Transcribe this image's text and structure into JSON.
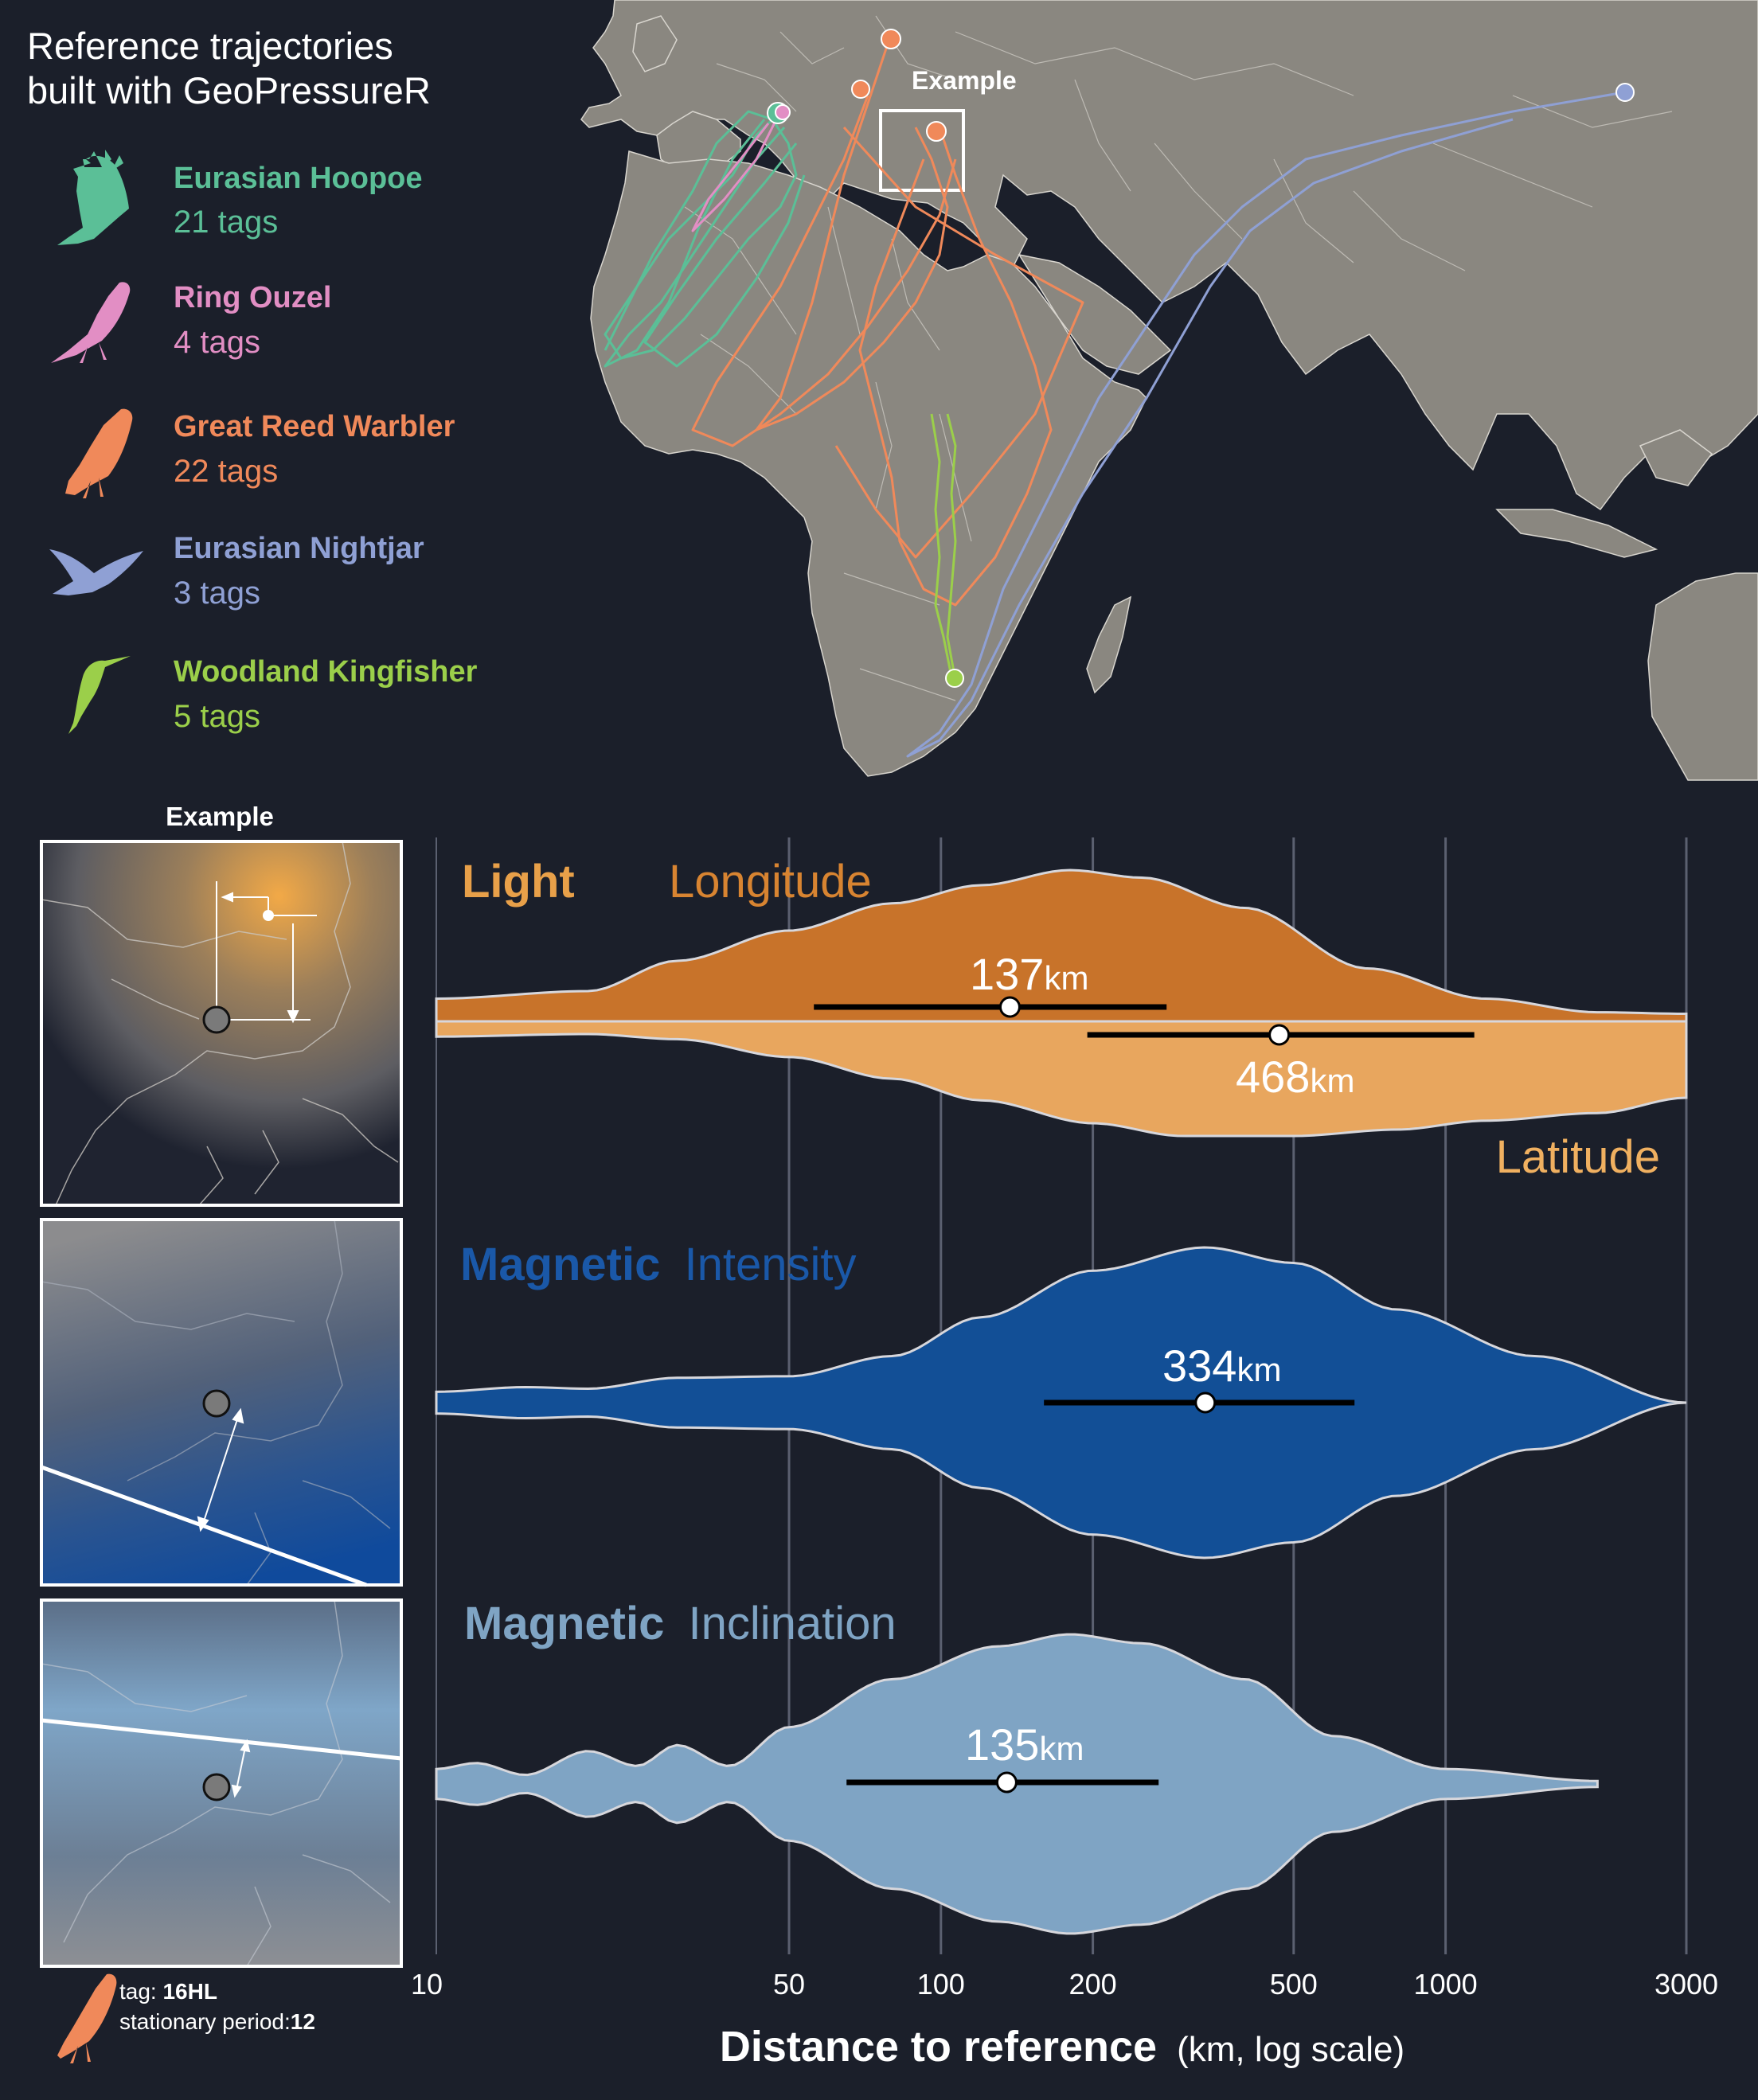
{
  "title_line1": "Reference trajectories",
  "title_line2": "built with GeoPressureR",
  "species": [
    {
      "name": "Eurasian Hoopoe",
      "tags": "21 tags",
      "color": "#5bbf97",
      "icon": "hoopoe-silhouette-icon"
    },
    {
      "name": "Ring Ouzel",
      "tags": "4 tags",
      "color": "#e28ec4",
      "icon": "ring-ouzel-silhouette-icon"
    },
    {
      "name": "Great Reed Warbler",
      "tags": "22 tags",
      "color": "#f0895a",
      "icon": "warbler-silhouette-icon"
    },
    {
      "name": "Eurasian Nightjar",
      "tags": "3 tags",
      "color": "#8fa0d4",
      "icon": "nightjar-silhouette-icon"
    },
    {
      "name": "Woodland Kingfisher",
      "tags": "5 tags",
      "color": "#9bcf4a",
      "icon": "kingfisher-silhouette-icon"
    }
  ],
  "map": {
    "example_label": "Example"
  },
  "example_panel_label": "Example",
  "footer": {
    "tag_label": "tag: ",
    "tag_value": "16HL",
    "period_label": "stationary period:",
    "period_value": "12"
  },
  "colors": {
    "background": "#1b1f2a",
    "land": "#8a8780",
    "light_dark": "#c8732a",
    "light_light": "#e8a65e",
    "intensity": "#124f96",
    "inclination": "#7fa4c4"
  },
  "chart_data": {
    "type": "violin",
    "xlabel_bold": "Distance to reference",
    "xlabel_rest": "(km, log scale)",
    "x_scale": "log",
    "xlim": [
      10,
      3000
    ],
    "x_ticks": [
      10,
      50,
      100,
      200,
      500,
      1000,
      3000
    ],
    "x_tick_labels": [
      "10",
      "50",
      "100",
      "200",
      "500",
      "1000",
      "3000"
    ],
    "grid": "vertical",
    "series": [
      {
        "title_bold": "Light",
        "name": "Longitude",
        "median_km": 137,
        "median_label": "137",
        "unit": "km",
        "interval_km": [
          56,
          280
        ],
        "half": "upper",
        "color": "#c8732a",
        "density": [
          [
            10,
            0.15
          ],
          [
            20,
            0.2
          ],
          [
            30,
            0.4
          ],
          [
            50,
            0.6
          ],
          [
            80,
            0.78
          ],
          [
            120,
            0.9
          ],
          [
            180,
            1.0
          ],
          [
            250,
            0.95
          ],
          [
            400,
            0.75
          ],
          [
            700,
            0.35
          ],
          [
            1200,
            0.15
          ],
          [
            2000,
            0.06
          ],
          [
            3000,
            0.05
          ]
        ]
      },
      {
        "title_bold": "",
        "name": "Latitude",
        "median_km": 468,
        "median_label": "468",
        "unit": "km",
        "interval_km": [
          195,
          1140
        ],
        "half": "lower",
        "color": "#e8a65e",
        "density": [
          [
            10,
            0.12
          ],
          [
            20,
            0.1
          ],
          [
            30,
            0.14
          ],
          [
            50,
            0.28
          ],
          [
            80,
            0.45
          ],
          [
            120,
            0.62
          ],
          [
            200,
            0.8
          ],
          [
            300,
            0.9
          ],
          [
            500,
            0.9
          ],
          [
            800,
            0.85
          ],
          [
            1200,
            0.78
          ],
          [
            2000,
            0.72
          ],
          [
            3000,
            0.6
          ]
        ]
      },
      {
        "title_bold": "Magnetic",
        "name": "Intensity",
        "median_km": 334,
        "median_label": "334",
        "unit": "km",
        "interval_km": [
          160,
          660
        ],
        "half": "both",
        "color": "#124f96",
        "density": [
          [
            10,
            0.07
          ],
          [
            15,
            0.1
          ],
          [
            20,
            0.09
          ],
          [
            30,
            0.16
          ],
          [
            50,
            0.17
          ],
          [
            80,
            0.3
          ],
          [
            120,
            0.55
          ],
          [
            200,
            0.85
          ],
          [
            334,
            1.0
          ],
          [
            500,
            0.9
          ],
          [
            800,
            0.6
          ],
          [
            1500,
            0.3
          ],
          [
            3000,
            0.0
          ]
        ]
      },
      {
        "title_bold": "Magnetic",
        "name": "Inclination",
        "median_km": 135,
        "median_label": "135",
        "unit": "km",
        "interval_km": [
          65,
          270
        ],
        "half": "both",
        "color": "#7fa4c4",
        "density": [
          [
            10,
            0.1
          ],
          [
            12,
            0.14
          ],
          [
            15,
            0.06
          ],
          [
            20,
            0.22
          ],
          [
            25,
            0.12
          ],
          [
            30,
            0.26
          ],
          [
            38,
            0.12
          ],
          [
            50,
            0.38
          ],
          [
            80,
            0.7
          ],
          [
            130,
            0.92
          ],
          [
            180,
            1.0
          ],
          [
            250,
            0.94
          ],
          [
            400,
            0.7
          ],
          [
            600,
            0.32
          ],
          [
            1000,
            0.1
          ],
          [
            2000,
            0.02
          ]
        ]
      }
    ]
  }
}
